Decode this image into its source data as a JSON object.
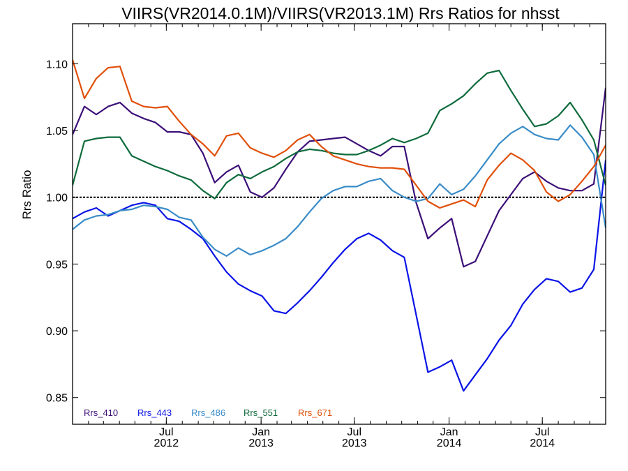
{
  "chart_data": {
    "type": "line",
    "title": "VIIRS(VR2014.0.1M)/VIIRS(VR2013.1M)  Rrs Ratios for nhsst",
    "ylabel": "Rrs Ratio",
    "xlabel": "",
    "ylim": [
      0.83,
      1.13
    ],
    "xlim": [
      "2012-01-01",
      "2014-11-01"
    ],
    "reference_line": 1.0,
    "y_ticks": [
      "0.85",
      "0.90",
      "0.95",
      "1.00",
      "1.05",
      "1.10"
    ],
    "x_ticks": [
      {
        "date": "2012-07-01",
        "month": "Jul",
        "year": "2012"
      },
      {
        "date": "2013-01-01",
        "month": "Jan",
        "year": "2013"
      },
      {
        "date": "2013-07-01",
        "month": "Jul",
        "year": "2013"
      },
      {
        "date": "2014-01-01",
        "month": "Jan",
        "year": "2014"
      },
      {
        "date": "2014-07-01",
        "month": "Jul",
        "year": "2014"
      }
    ],
    "x": [
      "2012-01-01",
      "2012-01-24",
      "2012-02-16",
      "2012-03-10",
      "2012-04-02",
      "2012-04-25",
      "2012-05-18",
      "2012-06-10",
      "2012-07-03",
      "2012-07-26",
      "2012-08-18",
      "2012-09-10",
      "2012-10-03",
      "2012-10-26",
      "2012-11-18",
      "2012-12-11",
      "2013-01-03",
      "2013-01-26",
      "2013-02-18",
      "2013-03-13",
      "2013-04-05",
      "2013-04-28",
      "2013-05-21",
      "2013-06-13",
      "2013-07-06",
      "2013-07-29",
      "2013-08-21",
      "2013-09-13",
      "2013-10-06",
      "2013-10-29",
      "2013-11-21",
      "2013-12-14",
      "2014-01-06",
      "2014-01-29",
      "2014-02-21",
      "2014-03-16",
      "2014-04-08",
      "2014-05-01",
      "2014-05-24",
      "2014-06-16",
      "2014-07-09",
      "2014-08-01",
      "2014-08-24",
      "2014-09-16",
      "2014-10-09",
      "2014-11-01"
    ],
    "series": [
      {
        "name": "Rrs_410",
        "color": "#3c0f78",
        "values": [
          1.047,
          1.068,
          1.062,
          1.068,
          1.071,
          1.063,
          1.059,
          1.056,
          1.049,
          1.049,
          1.047,
          1.033,
          1.011,
          1.019,
          1.024,
          1.004,
          1.0,
          1.007,
          1.021,
          1.034,
          1.042,
          1.043,
          1.044,
          1.045,
          1.04,
          1.035,
          1.031,
          1.038,
          1.038,
          0.996,
          0.969,
          0.977,
          0.984,
          0.948,
          0.952,
          0.971,
          0.99,
          1.002,
          1.014,
          1.019,
          1.012,
          1.007,
          1.005,
          1.005,
          1.01,
          1.082
        ]
      },
      {
        "name": "Rrs_443",
        "color": "#0a14e6",
        "values": [
          0.984,
          0.989,
          0.992,
          0.986,
          0.99,
          0.994,
          0.996,
          0.994,
          0.984,
          0.982,
          0.976,
          0.969,
          0.956,
          0.944,
          0.935,
          0.93,
          0.926,
          0.915,
          0.913,
          0.921,
          0.93,
          0.94,
          0.951,
          0.961,
          0.969,
          0.973,
          0.968,
          0.96,
          0.955,
          0.912,
          0.869,
          0.873,
          0.878,
          0.855,
          0.867,
          0.879,
          0.893,
          0.904,
          0.92,
          0.931,
          0.939,
          0.937,
          0.929,
          0.932,
          0.946,
          1.028
        ]
      },
      {
        "name": "Rrs_486",
        "color": "#3a8cc8",
        "values": [
          0.976,
          0.983,
          0.986,
          0.987,
          0.99,
          0.991,
          0.994,
          0.993,
          0.991,
          0.985,
          0.983,
          0.97,
          0.961,
          0.956,
          0.962,
          0.957,
          0.96,
          0.964,
          0.969,
          0.978,
          0.989,
          0.999,
          1.005,
          1.008,
          1.008,
          1.012,
          1.014,
          1.005,
          1.0,
          0.997,
          0.999,
          1.01,
          1.002,
          1.006,
          1.016,
          1.028,
          1.04,
          1.048,
          1.053,
          1.047,
          1.044,
          1.043,
          1.054,
          1.045,
          1.032,
          0.977
        ]
      },
      {
        "name": "Rrs_551",
        "color": "#0f6b3c",
        "values": [
          1.009,
          1.042,
          1.044,
          1.045,
          1.045,
          1.031,
          1.027,
          1.023,
          1.02,
          1.016,
          1.013,
          1.005,
          0.999,
          1.011,
          1.017,
          1.014,
          1.019,
          1.023,
          1.029,
          1.034,
          1.036,
          1.035,
          1.033,
          1.032,
          1.032,
          1.035,
          1.039,
          1.044,
          1.041,
          1.044,
          1.048,
          1.065,
          1.07,
          1.076,
          1.085,
          1.093,
          1.095,
          1.08,
          1.066,
          1.053,
          1.055,
          1.061,
          1.071,
          1.058,
          1.043,
          1.009
        ]
      },
      {
        "name": "Rrs_671",
        "color": "#e0500a",
        "values": [
          1.103,
          1.074,
          1.089,
          1.097,
          1.098,
          1.072,
          1.068,
          1.067,
          1.068,
          1.057,
          1.047,
          1.04,
          1.031,
          1.046,
          1.048,
          1.037,
          1.033,
          1.03,
          1.035,
          1.043,
          1.047,
          1.038,
          1.031,
          1.028,
          1.025,
          1.023,
          1.022,
          1.022,
          1.021,
          1.009,
          0.997,
          0.992,
          0.995,
          0.998,
          0.993,
          1.013,
          1.024,
          1.033,
          1.028,
          1.02,
          1.004,
          0.997,
          1.002,
          1.012,
          1.023,
          1.039
        ]
      }
    ],
    "legend": {
      "placement": "bottom-left",
      "entries": [
        "Rrs_410",
        "Rrs_443",
        "Rrs_486",
        "Rrs_551",
        "Rrs_671"
      ]
    },
    "grid": false
  }
}
